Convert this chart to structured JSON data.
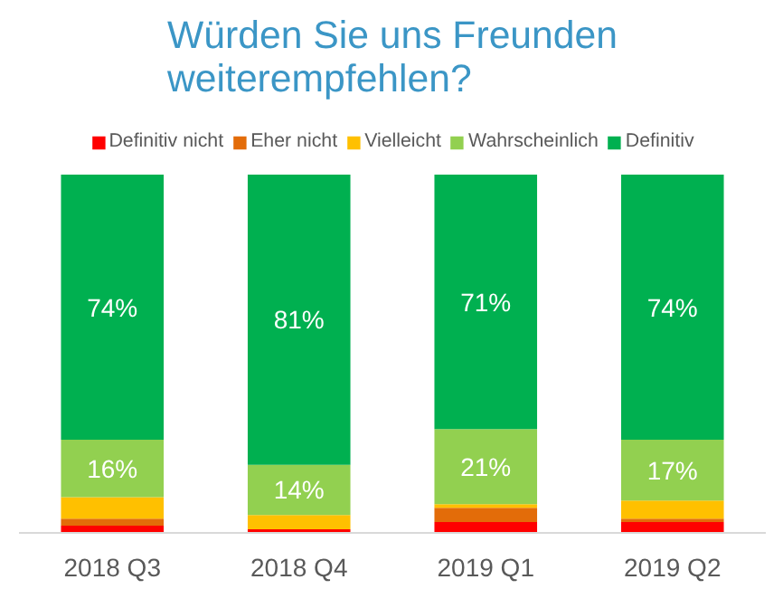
{
  "chart_data": {
    "type": "bar",
    "title": "Würden Sie uns Freunden\nweiterempfehlen?",
    "stacked": true,
    "categories": [
      "2018 Q3",
      "2018 Q4",
      "2019 Q1",
      "2019 Q2"
    ],
    "series": [
      {
        "name": "Definitiv nicht",
        "color": "#ff0000",
        "values": [
          2,
          1,
          3,
          3
        ]
      },
      {
        "name": "Eher nicht",
        "color": "#e36c09",
        "values": [
          2,
          0,
          4,
          1
        ]
      },
      {
        "name": "Vielleicht",
        "color": "#ffc000",
        "values": [
          6,
          4,
          1,
          5
        ]
      },
      {
        "name": "Wahrscheinlich",
        "color": "#92d050",
        "values": [
          16,
          14,
          21,
          17
        ],
        "value_labels": [
          "16%",
          "14%",
          "21%",
          "17%"
        ]
      },
      {
        "name": "Definitiv",
        "color": "#00b050",
        "values": [
          74,
          81,
          71,
          74
        ],
        "value_labels": [
          "74%",
          "81%",
          "71%",
          "74%"
        ]
      }
    ],
    "ylim": [
      0,
      100
    ],
    "tick_labels": "x",
    "grid": false,
    "legend": "top"
  }
}
